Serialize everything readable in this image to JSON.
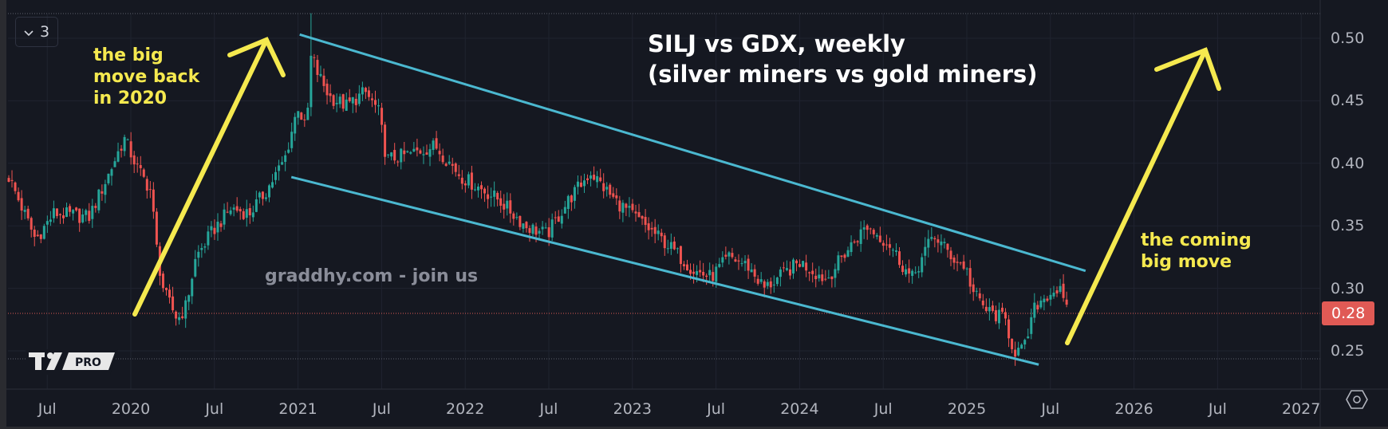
{
  "toolbar": {
    "interval_count": "3",
    "interval_icon": "chevron-down-icon"
  },
  "logo": {
    "text": "PRO"
  },
  "settings_icon": "gear-hexagon-icon",
  "colors": {
    "up": "#26a69a",
    "down": "#ef5350",
    "channel": "#4bb8d0",
    "annotation": "#f5e94f",
    "background": "#151821",
    "last_price": "#e05a55"
  },
  "chart_data": {
    "type": "candlestick",
    "title": "SILJ vs GDX, weekly",
    "subtitle": "(silver miners vs gold miners)",
    "interval": "weekly",
    "annotations": [
      {
        "text": [
          "the big",
          "move back",
          "in 2020"
        ]
      },
      {
        "text": [
          "the coming",
          "big move"
        ]
      }
    ],
    "watermark": "graddhy.com - join us",
    "last_price": 0.28,
    "last_price_label": "0.28",
    "ylim": [
      0.22,
      0.52
    ],
    "y_ticks": [
      {
        "value": 0.5,
        "label": "0.50"
      },
      {
        "value": 0.45,
        "label": "0.45"
      },
      {
        "value": 0.4,
        "label": "0.40"
      },
      {
        "value": 0.35,
        "label": "0.35"
      },
      {
        "value": 0.3,
        "label": "0.30"
      },
      {
        "value": 0.25,
        "label": "0.25"
      }
    ],
    "x_ticks": [
      {
        "value": 2019.5,
        "label": "Jul"
      },
      {
        "value": 2020.0,
        "label": "2020"
      },
      {
        "value": 2020.5,
        "label": "Jul"
      },
      {
        "value": 2021.0,
        "label": "2021"
      },
      {
        "value": 2021.5,
        "label": "Jul"
      },
      {
        "value": 2022.0,
        "label": "2022"
      },
      {
        "value": 2022.5,
        "label": "Jul"
      },
      {
        "value": 2023.0,
        "label": "2023"
      },
      {
        "value": 2023.5,
        "label": "Jul"
      },
      {
        "value": 2024.0,
        "label": "2024"
      },
      {
        "value": 2024.5,
        "label": "Jul"
      },
      {
        "value": 2025.0,
        "label": "2025"
      },
      {
        "value": 2025.5,
        "label": "Jul"
      },
      {
        "value": 2026.0,
        "label": "2026"
      },
      {
        "value": 2026.5,
        "label": "Jul"
      },
      {
        "value": 2027.0,
        "label": "2027"
      }
    ],
    "close_path": [
      [
        2019.27,
        0.389
      ],
      [
        2019.43,
        0.339
      ],
      [
        2019.54,
        0.36
      ],
      [
        2019.75,
        0.357
      ],
      [
        2019.86,
        0.389
      ],
      [
        2019.96,
        0.42
      ],
      [
        2020.04,
        0.396
      ],
      [
        2020.12,
        0.378
      ],
      [
        2020.16,
        0.325
      ],
      [
        2020.2,
        0.296
      ],
      [
        2020.28,
        0.275
      ],
      [
        2020.33,
        0.286
      ],
      [
        2020.39,
        0.325
      ],
      [
        2020.49,
        0.346
      ],
      [
        2020.6,
        0.364
      ],
      [
        2020.71,
        0.36
      ],
      [
        2020.81,
        0.378
      ],
      [
        2020.92,
        0.403
      ],
      [
        2021.0,
        0.446
      ],
      [
        2021.05,
        0.425
      ],
      [
        2021.08,
        0.489
      ],
      [
        2021.11,
        0.474
      ],
      [
        2021.19,
        0.453
      ],
      [
        2021.29,
        0.446
      ],
      [
        2021.4,
        0.457
      ],
      [
        2021.48,
        0.442
      ],
      [
        2021.53,
        0.403
      ],
      [
        2021.66,
        0.407
      ],
      [
        2021.82,
        0.414
      ],
      [
        2021.98,
        0.389
      ],
      [
        2022.2,
        0.371
      ],
      [
        2022.36,
        0.35
      ],
      [
        2022.49,
        0.343
      ],
      [
        2022.62,
        0.371
      ],
      [
        2022.75,
        0.393
      ],
      [
        2022.89,
        0.371
      ],
      [
        2023.05,
        0.353
      ],
      [
        2023.21,
        0.335
      ],
      [
        2023.37,
        0.314
      ],
      [
        2023.47,
        0.309
      ],
      [
        2023.58,
        0.325
      ],
      [
        2023.69,
        0.318
      ],
      [
        2023.79,
        0.3
      ],
      [
        2023.9,
        0.311
      ],
      [
        2024.0,
        0.321
      ],
      [
        2024.16,
        0.307
      ],
      [
        2024.27,
        0.328
      ],
      [
        2024.4,
        0.35
      ],
      [
        2024.54,
        0.335
      ],
      [
        2024.67,
        0.307
      ],
      [
        2024.8,
        0.343
      ],
      [
        2024.94,
        0.321
      ],
      [
        2024.99,
        0.318
      ],
      [
        2025.04,
        0.296
      ],
      [
        2025.12,
        0.282
      ],
      [
        2025.23,
        0.275
      ],
      [
        2025.28,
        0.25
      ],
      [
        2025.34,
        0.25
      ],
      [
        2025.41,
        0.286
      ],
      [
        2025.49,
        0.296
      ],
      [
        2025.55,
        0.3
      ],
      [
        2025.6,
        0.28
      ]
    ],
    "max_high": [
      2021.08,
      0.52
    ],
    "channel": {
      "upper": [
        [
          2021.01,
          0.503
        ],
        [
          2025.71,
          0.314
        ]
      ],
      "lower": [
        [
          2020.96,
          0.389
        ],
        [
          2025.43,
          0.239
        ]
      ]
    }
  }
}
